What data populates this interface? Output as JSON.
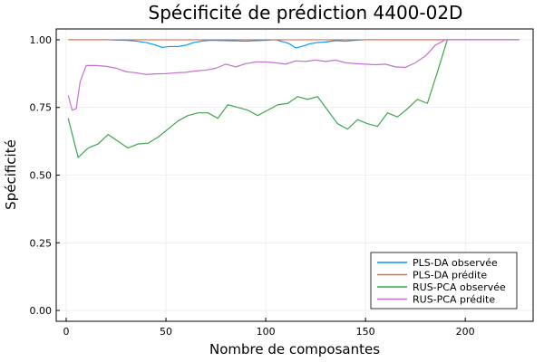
{
  "chart_data": {
    "type": "line",
    "title": "Spécificité de prédiction 4400-02D",
    "xlabel": "Nombre de composantes",
    "ylabel": "Spécificité",
    "xlim": [
      -5,
      234
    ],
    "ylim": [
      -0.04,
      1.04
    ],
    "xticks": [
      0,
      50,
      100,
      150,
      200
    ],
    "yticks": [
      0.0,
      0.25,
      0.5,
      0.75,
      1.0
    ],
    "ytick_labels": [
      "0.00",
      "0.25",
      "0.50",
      "0.75",
      "1.00"
    ],
    "grid": true,
    "legend_position": "bottom-right",
    "series": [
      {
        "name": "PLS-DA observée",
        "color": "#009AFA",
        "x": [
          1,
          5,
          10,
          20,
          30,
          35,
          40,
          45,
          48,
          52,
          56,
          60,
          64,
          68,
          72,
          80,
          90,
          100,
          105,
          110,
          112,
          115,
          118,
          122,
          126,
          130,
          135,
          140,
          145,
          150,
          160,
          170,
          180,
          190,
          200,
          210,
          220,
          227
        ],
        "y": [
          1.0,
          1.0,
          1.0,
          1.0,
          0.998,
          0.995,
          0.99,
          0.98,
          0.972,
          0.975,
          0.975,
          0.98,
          0.99,
          0.995,
          0.998,
          0.997,
          0.995,
          0.998,
          1.0,
          0.99,
          0.985,
          0.97,
          0.975,
          0.985,
          0.99,
          0.992,
          0.997,
          0.995,
          0.998,
          1.0,
          1.0,
          1.0,
          1.0,
          1.0,
          1.0,
          1.0,
          1.0,
          1.0
        ]
      },
      {
        "name": "PLS-DA prédite",
        "color": "#E26F46",
        "x": [
          1,
          227
        ],
        "y": [
          1.0,
          1.0
        ]
      },
      {
        "name": "RUS-PCA observée",
        "color": "#3DA44D",
        "x": [
          1,
          6,
          11,
          16,
          21,
          26,
          31,
          36,
          41,
          46,
          51,
          56,
          61,
          66,
          71,
          76,
          81,
          86,
          91,
          96,
          101,
          106,
          111,
          116,
          121,
          126,
          131,
          136,
          141,
          146,
          151,
          156,
          161,
          166,
          171,
          176,
          181,
          186,
          191,
          196,
          201,
          206,
          211,
          216,
          221,
          227
        ],
        "y": [
          0.71,
          0.565,
          0.6,
          0.615,
          0.65,
          0.625,
          0.6,
          0.615,
          0.618,
          0.64,
          0.67,
          0.7,
          0.72,
          0.73,
          0.73,
          0.71,
          0.76,
          0.75,
          0.74,
          0.72,
          0.74,
          0.76,
          0.765,
          0.79,
          0.78,
          0.79,
          0.74,
          0.69,
          0.67,
          0.705,
          0.69,
          0.68,
          0.73,
          0.715,
          0.745,
          0.78,
          0.765,
          0.88,
          1.0,
          1.0,
          1.0,
          1.0,
          1.0,
          1.0,
          1.0,
          1.0
        ]
      },
      {
        "name": "RUS-PCA prédite",
        "color": "#C371D2",
        "x": [
          1,
          3,
          5,
          7,
          10,
          15,
          20,
          25,
          30,
          35,
          40,
          45,
          50,
          55,
          60,
          65,
          70,
          75,
          80,
          85,
          90,
          95,
          100,
          105,
          110,
          115,
          120,
          125,
          130,
          135,
          140,
          145,
          150,
          155,
          160,
          165,
          170,
          175,
          180,
          185,
          190,
          195,
          200,
          210,
          220,
          227
        ],
        "y": [
          0.795,
          0.74,
          0.745,
          0.845,
          0.905,
          0.905,
          0.902,
          0.895,
          0.882,
          0.878,
          0.872,
          0.874,
          0.875,
          0.878,
          0.88,
          0.885,
          0.888,
          0.895,
          0.91,
          0.9,
          0.912,
          0.918,
          0.918,
          0.915,
          0.91,
          0.922,
          0.92,
          0.925,
          0.92,
          0.925,
          0.915,
          0.912,
          0.91,
          0.908,
          0.91,
          0.9,
          0.898,
          0.915,
          0.94,
          0.98,
          1.0,
          1.0,
          1.0,
          1.0,
          1.0,
          1.0
        ]
      }
    ]
  }
}
